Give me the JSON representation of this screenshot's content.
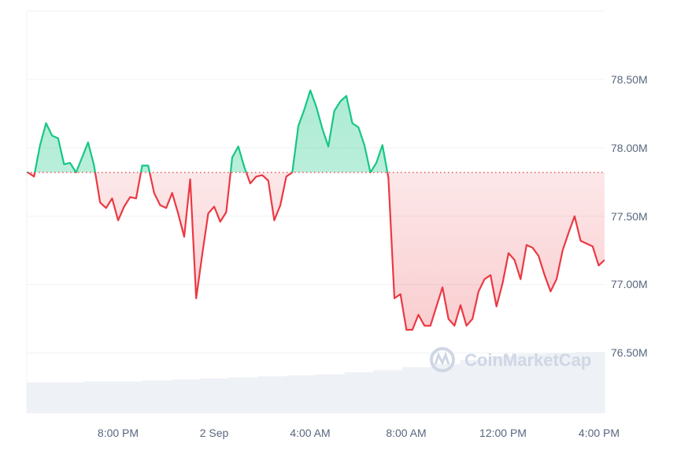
{
  "chart_data": {
    "type": "line",
    "title": "",
    "xlabel": "",
    "ylabel": "",
    "x_tick_labels": [
      "8:00 PM",
      "2 Sep",
      "4:00 AM",
      "8:00 AM",
      "12:00 PM",
      "4:00 PM"
    ],
    "y_tick_labels": [
      "78.50M",
      "78.00M",
      "77.50M",
      "77.00M",
      "76.50M"
    ],
    "y_ticks": [
      78.5,
      78.0,
      77.5,
      77.0,
      76.5
    ],
    "ylim": [
      76.06,
      79.0
    ],
    "y_unit": "M",
    "baseline": 77.82,
    "grid": true,
    "colors": {
      "above": "#16c784",
      "below": "#ea3943",
      "volume": "#eef1f6",
      "grid": "#eff2f5"
    },
    "x_interval_minutes": 15,
    "x_start": "1 Sep 4:15 PM",
    "x_end": "2 Sep 4:15 PM",
    "values": [
      77.82,
      77.79,
      78.02,
      78.18,
      78.09,
      78.07,
      77.88,
      77.89,
      77.82,
      77.93,
      78.04,
      77.87,
      77.6,
      77.56,
      77.63,
      77.47,
      77.57,
      77.64,
      77.63,
      77.87,
      77.87,
      77.67,
      77.58,
      77.56,
      77.67,
      77.52,
      77.35,
      77.77,
      76.9,
      77.22,
      77.52,
      77.57,
      77.46,
      77.53,
      77.93,
      78.01,
      77.86,
      77.74,
      77.79,
      77.8,
      77.76,
      77.47,
      77.58,
      77.79,
      77.82,
      78.16,
      78.28,
      78.42,
      78.3,
      78.14,
      78.01,
      78.27,
      78.34,
      78.38,
      78.18,
      78.15,
      78.02,
      77.82,
      77.89,
      78.02,
      77.78,
      76.9,
      76.93,
      76.67,
      76.67,
      76.78,
      76.7,
      76.7,
      76.84,
      76.98,
      76.75,
      76.7,
      76.85,
      76.7,
      76.75,
      76.95,
      77.04,
      77.07,
      76.84,
      77.01,
      77.23,
      77.18,
      77.04,
      77.29,
      77.27,
      77.21,
      77.07,
      76.95,
      77.04,
      77.25,
      77.38,
      77.5,
      77.32,
      77.3,
      77.28,
      77.14,
      77.18
    ],
    "volume_relative": [
      0.3,
      0.3,
      0.31,
      0.31,
      0.32,
      0.33,
      0.34,
      0.35,
      0.36,
      0.37,
      0.38,
      0.4,
      0.42,
      0.45,
      0.48,
      0.52,
      0.56,
      0.58,
      0.59,
      0.6
    ]
  },
  "watermark": "CoinMarketCap"
}
